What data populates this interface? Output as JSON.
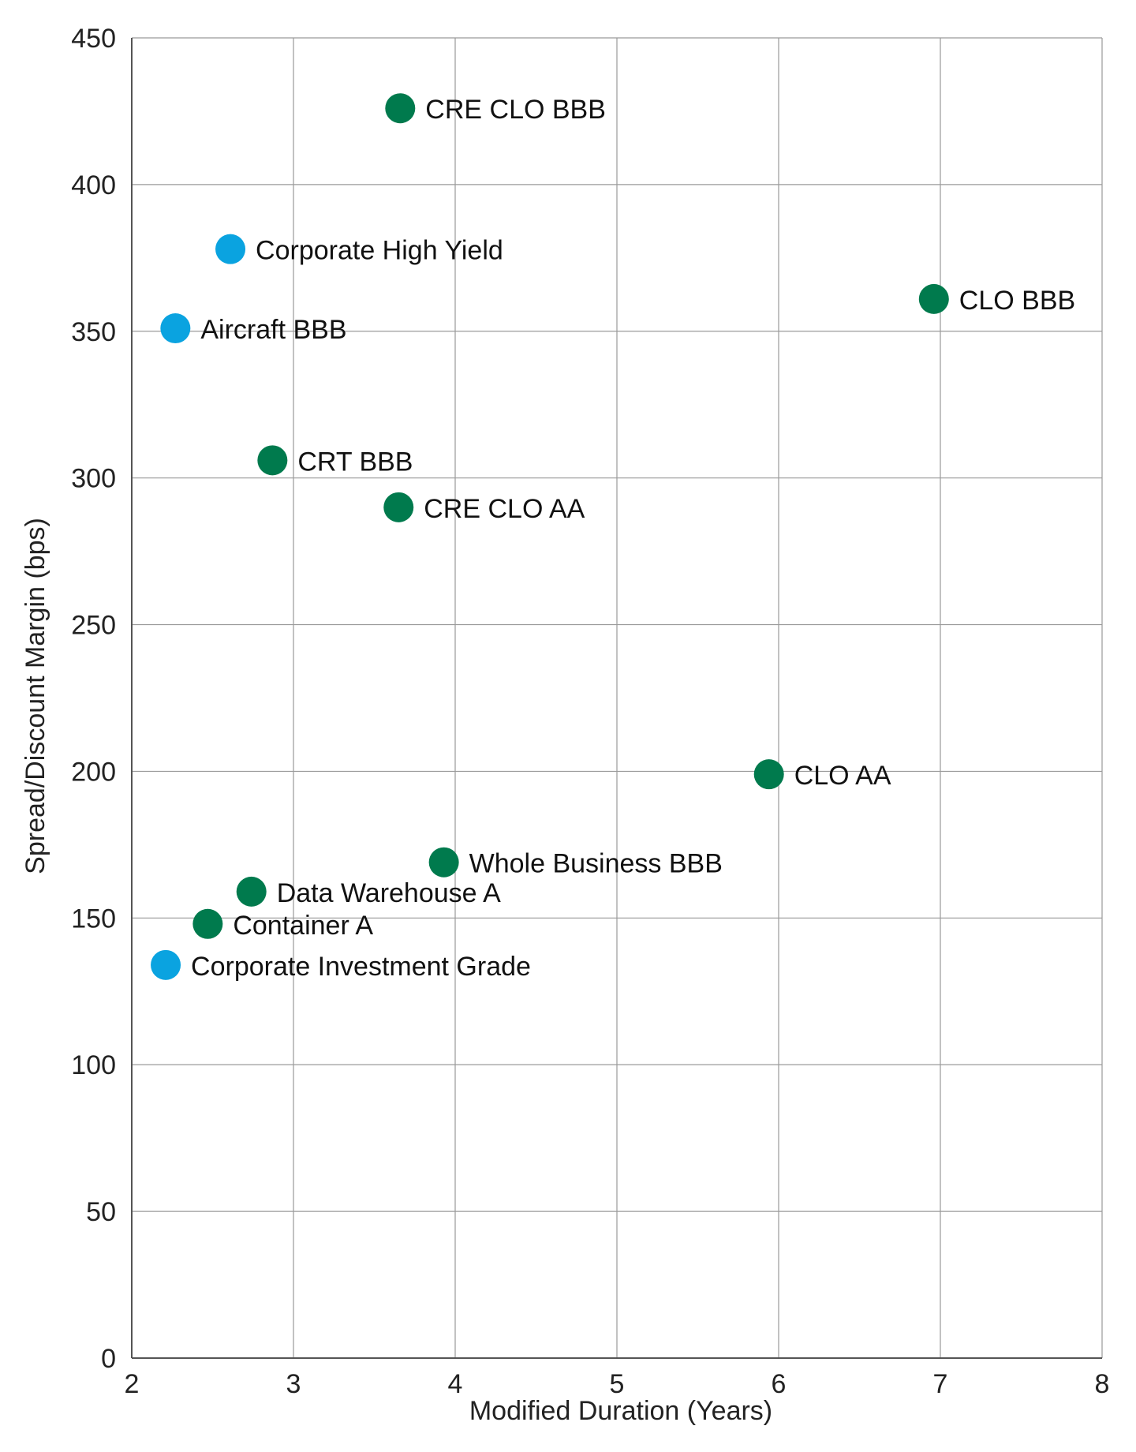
{
  "chart_data": {
    "type": "scatter",
    "title": "",
    "xlabel": "Modified Duration (Years)",
    "ylabel": "Spread/Discount Margin (bps)",
    "xlim": [
      2,
      8
    ],
    "ylim": [
      0,
      450
    ],
    "xticks": [
      "2",
      "3",
      "4",
      "5",
      "6",
      "7",
      "8"
    ],
    "yticks": [
      "0",
      "50",
      "100",
      "150",
      "200",
      "250",
      "300",
      "350",
      "400",
      "450"
    ],
    "grid": true,
    "colors": {
      "green": "#007a4d",
      "blue": "#0aa3e0"
    },
    "points": [
      {
        "label": "CRE CLO BBB",
        "x": 3.66,
        "y": 426,
        "color": "#007a4d"
      },
      {
        "label": "Corporate High Yield",
        "x": 2.61,
        "y": 378,
        "color": "#0aa3e0"
      },
      {
        "label": "CLO BBB",
        "x": 6.96,
        "y": 361,
        "color": "#007a4d"
      },
      {
        "label": "Aircraft BBB",
        "x": 2.27,
        "y": 351,
        "color": "#0aa3e0"
      },
      {
        "label": "CRT BBB",
        "x": 2.87,
        "y": 306,
        "color": "#007a4d"
      },
      {
        "label": "CRE CLO AA",
        "x": 3.65,
        "y": 290,
        "color": "#007a4d"
      },
      {
        "label": "CLO AA",
        "x": 5.94,
        "y": 199,
        "color": "#007a4d"
      },
      {
        "label": "Whole Business BBB",
        "x": 3.93,
        "y": 169,
        "color": "#007a4d"
      },
      {
        "label": "Data Warehouse A",
        "x": 2.74,
        "y": 159,
        "color": "#007a4d"
      },
      {
        "label": "Container A",
        "x": 2.47,
        "y": 148,
        "color": "#007a4d"
      },
      {
        "label": "Corporate Investment Grade",
        "x": 2.21,
        "y": 134,
        "color": "#0aa3e0"
      }
    ]
  }
}
